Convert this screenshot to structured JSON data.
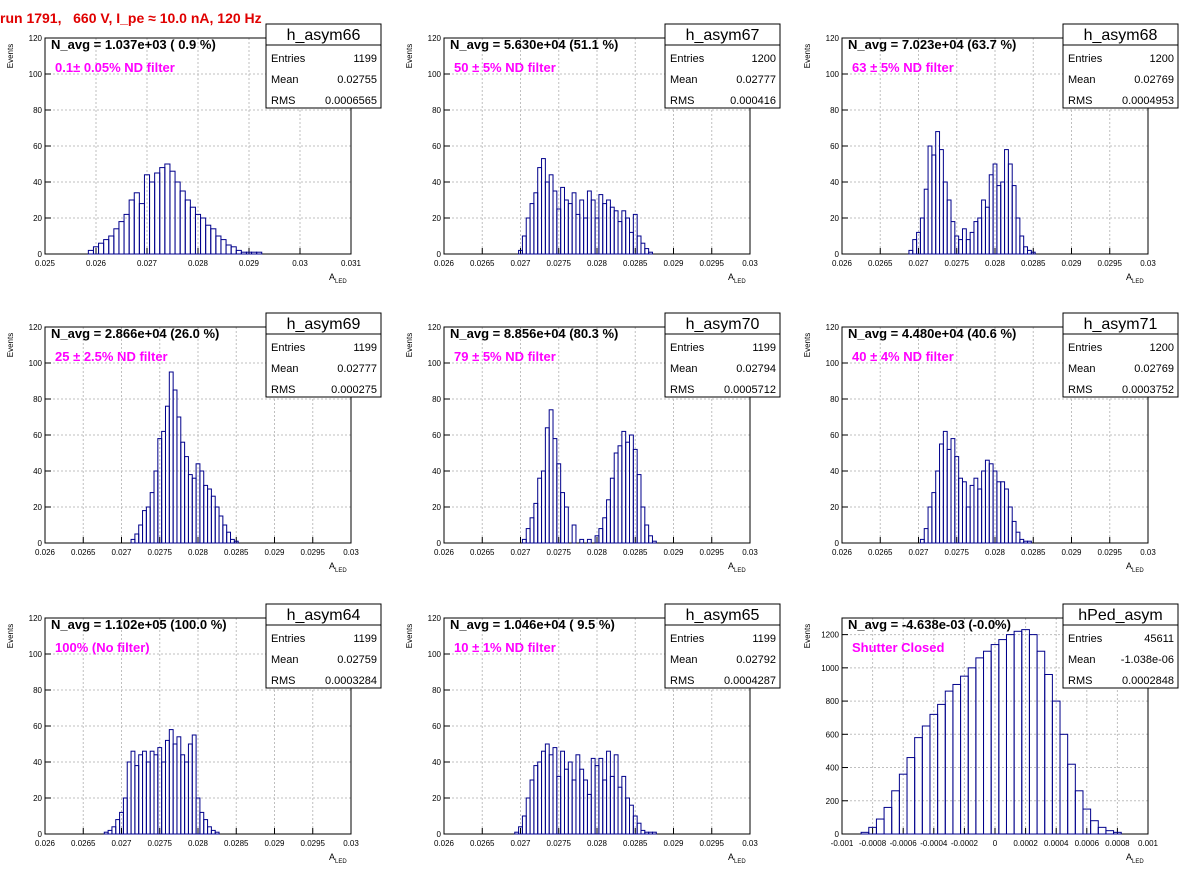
{
  "header": {
    "run_title": "run 1791,   660 V, I_pe ≈ 10.0 nA, 120 Hz"
  },
  "colors": {
    "histogram": "#00008b",
    "filter_text": "#ff00ff",
    "title_text": "#ff0000",
    "grid": "#bfbfbf"
  },
  "axis_labels": {
    "y": "Events",
    "x_main": "A",
    "x_sub": "LED"
  },
  "stat_labels": {
    "entries": "Entries",
    "mean": "Mean",
    "rms": "RMS"
  },
  "chart_data": [
    {
      "type": "bar",
      "name": "h_asym66",
      "navg": "N_avg = 1.037e+03 ( 0.9 %)",
      "filter": "0.1± 0.05% ND filter",
      "entries": "1199",
      "mean": "0.02755",
      "rms": "0.0006565",
      "xlim": [
        0.025,
        0.031
      ],
      "ylim": [
        0,
        120
      ],
      "xticks": [
        "0.025",
        "0.026",
        "0.027",
        "0.028",
        "0.029",
        "0.03",
        "0.031"
      ],
      "yticks": [
        "0",
        "20",
        "40",
        "60",
        "80",
        "100",
        "120"
      ],
      "x": [
        0.0259,
        0.026,
        0.0261,
        0.0262,
        0.0263,
        0.0264,
        0.0265,
        0.0266,
        0.0267,
        0.0268,
        0.0269,
        0.027,
        0.0271,
        0.0272,
        0.0273,
        0.0274,
        0.0275,
        0.0276,
        0.0277,
        0.0278,
        0.0279,
        0.028,
        0.0281,
        0.0282,
        0.0283,
        0.0284,
        0.0285,
        0.0286,
        0.0287,
        0.0288,
        0.0289,
        0.029,
        0.0291,
        0.0292
      ],
      "values": [
        2,
        4,
        6,
        8,
        10,
        14,
        18,
        22,
        30,
        34,
        28,
        44,
        40,
        45,
        48,
        50,
        46,
        40,
        35,
        30,
        26,
        22,
        20,
        16,
        14,
        10,
        8,
        5,
        4,
        2,
        1,
        1,
        1,
        1
      ]
    },
    {
      "type": "bar",
      "name": "h_asym67",
      "navg": "N_avg = 5.630e+04 (51.1 %)",
      "filter": "50 ± 5% ND filter",
      "entries": "1200",
      "mean": "0.02777",
      "rms": "0.000416",
      "xlim": [
        0.026,
        0.03
      ],
      "ylim": [
        0,
        120
      ],
      "xticks": [
        "0.026",
        "0.0265",
        "0.027",
        "0.0275",
        "0.028",
        "0.0285",
        "0.029",
        "0.0295",
        "0.03"
      ],
      "yticks": [
        "0",
        "20",
        "40",
        "60",
        "80",
        "100",
        "120"
      ],
      "x": [
        0.027,
        0.02705,
        0.0271,
        0.02715,
        0.0272,
        0.02725,
        0.0273,
        0.02735,
        0.0274,
        0.02745,
        0.0275,
        0.02755,
        0.0276,
        0.02765,
        0.0277,
        0.02775,
        0.0278,
        0.02785,
        0.0279,
        0.02795,
        0.028,
        0.02805,
        0.0281,
        0.02815,
        0.0282,
        0.02825,
        0.0283,
        0.02835,
        0.0284,
        0.02845,
        0.0285,
        0.02855,
        0.0286,
        0.02865,
        0.0287
      ],
      "values": [
        2,
        10,
        20,
        28,
        34,
        48,
        53,
        40,
        44,
        35,
        25,
        37,
        30,
        28,
        34,
        22,
        30,
        20,
        35,
        30,
        20,
        33,
        28,
        30,
        26,
        24,
        18,
        24,
        20,
        12,
        22,
        10,
        6,
        3,
        1
      ]
    },
    {
      "type": "bar",
      "name": "h_asym68",
      "navg": "N_avg = 7.023e+04 (63.7 %)",
      "filter": "63 ± 5% ND filter",
      "entries": "1200",
      "mean": "0.02769",
      "rms": "0.0004953",
      "xlim": [
        0.026,
        0.03
      ],
      "ylim": [
        0,
        120
      ],
      "xticks": [
        "0.026",
        "0.0265",
        "0.027",
        "0.0275",
        "0.028",
        "0.0285",
        "0.029",
        "0.0295",
        "0.03"
      ],
      "yticks": [
        "0",
        "20",
        "40",
        "60",
        "80",
        "100",
        "120"
      ],
      "x": [
        0.0269,
        0.02695,
        0.027,
        0.02705,
        0.0271,
        0.02715,
        0.0272,
        0.02725,
        0.0273,
        0.02735,
        0.0274,
        0.02745,
        0.0275,
        0.02755,
        0.0276,
        0.02765,
        0.0277,
        0.02775,
        0.0278,
        0.02785,
        0.0279,
        0.02795,
        0.028,
        0.02805,
        0.0281,
        0.02815,
        0.0282,
        0.02825,
        0.0283,
        0.02835,
        0.0284,
        0.02845,
        0.0285,
        0.02855,
        0.0286
      ],
      "values": [
        2,
        8,
        12,
        20,
        36,
        60,
        55,
        68,
        58,
        40,
        30,
        18,
        10,
        8,
        14,
        8,
        12,
        18,
        20,
        30,
        26,
        44,
        50,
        38,
        40,
        58,
        50,
        38,
        20,
        10,
        4,
        2,
        1,
        0,
        0
      ]
    },
    {
      "type": "bar",
      "name": "h_asym69",
      "navg": "N_avg = 2.866e+04 (26.0 %)",
      "filter": "25 ± 2.5% ND filter",
      "entries": "1199",
      "mean": "0.02777",
      "rms": "0.000275",
      "xlim": [
        0.026,
        0.03
      ],
      "ylim": [
        0,
        120
      ],
      "xticks": [
        "0.026",
        "0.0265",
        "0.027",
        "0.0275",
        "0.028",
        "0.0285",
        "0.029",
        "0.0295",
        "0.03"
      ],
      "yticks": [
        "0",
        "20",
        "40",
        "60",
        "80",
        "100",
        "120"
      ],
      "x": [
        0.02715,
        0.0272,
        0.02725,
        0.0273,
        0.02735,
        0.0274,
        0.02745,
        0.0275,
        0.02755,
        0.0276,
        0.02765,
        0.0277,
        0.02775,
        0.0278,
        0.02785,
        0.0279,
        0.02795,
        0.028,
        0.02805,
        0.0281,
        0.02815,
        0.0282,
        0.02825,
        0.0283,
        0.02835,
        0.0284,
        0.02845,
        0.0285
      ],
      "values": [
        2,
        5,
        10,
        18,
        20,
        28,
        40,
        58,
        62,
        76,
        95,
        85,
        70,
        56,
        48,
        38,
        36,
        44,
        40,
        32,
        30,
        26,
        20,
        15,
        10,
        6,
        2,
        1
      ]
    },
    {
      "type": "bar",
      "name": "h_asym70",
      "navg": "N_avg = 8.856e+04 (80.3 %)",
      "filter": "79 ± 5% ND filter",
      "entries": "1199",
      "mean": "0.02794",
      "rms": "0.0005712",
      "xlim": [
        0.026,
        0.03
      ],
      "ylim": [
        0,
        120
      ],
      "xticks": [
        "0.026",
        "0.0265",
        "0.027",
        "0.0275",
        "0.028",
        "0.0285",
        "0.029",
        "0.0295",
        "0.03"
      ],
      "yticks": [
        "0",
        "20",
        "40",
        "60",
        "80",
        "100",
        "120"
      ],
      "x": [
        0.02705,
        0.0271,
        0.02715,
        0.0272,
        0.02725,
        0.0273,
        0.02735,
        0.0274,
        0.02745,
        0.0275,
        0.02755,
        0.0276,
        0.0277,
        0.0278,
        0.0279,
        0.028,
        0.02805,
        0.0281,
        0.02815,
        0.0282,
        0.02825,
        0.0283,
        0.02835,
        0.0284,
        0.02845,
        0.0285,
        0.02855,
        0.0286,
        0.02865,
        0.0287,
        0.02875
      ],
      "values": [
        2,
        8,
        14,
        22,
        36,
        40,
        64,
        74,
        58,
        44,
        28,
        20,
        10,
        2,
        2,
        4,
        8,
        14,
        24,
        36,
        50,
        54,
        62,
        56,
        60,
        52,
        38,
        20,
        10,
        4,
        1
      ]
    },
    {
      "type": "bar",
      "name": "h_asym71",
      "navg": "N_avg = 4.480e+04 (40.6 %)",
      "filter": "40 ± 4% ND filter",
      "entries": "1200",
      "mean": "0.02769",
      "rms": "0.0003752",
      "xlim": [
        0.026,
        0.03
      ],
      "ylim": [
        0,
        120
      ],
      "xticks": [
        "0.026",
        "0.0265",
        "0.027",
        "0.0275",
        "0.028",
        "0.0285",
        "0.029",
        "0.0295",
        "0.03"
      ],
      "yticks": [
        "0",
        "20",
        "40",
        "60",
        "80",
        "100",
        "120"
      ],
      "x": [
        0.02705,
        0.0271,
        0.02715,
        0.0272,
        0.02725,
        0.0273,
        0.02735,
        0.0274,
        0.02745,
        0.0275,
        0.02755,
        0.0276,
        0.02765,
        0.0277,
        0.02775,
        0.0278,
        0.02785,
        0.0279,
        0.02795,
        0.028,
        0.02805,
        0.0281,
        0.02815,
        0.0282,
        0.02825,
        0.0283,
        0.02835,
        0.0284,
        0.02845
      ],
      "values": [
        2,
        8,
        20,
        28,
        40,
        55,
        62,
        52,
        58,
        48,
        36,
        34,
        20,
        32,
        36,
        30,
        40,
        46,
        44,
        40,
        34,
        34,
        30,
        20,
        12,
        6,
        2,
        1,
        1
      ]
    },
    {
      "type": "bar",
      "name": "h_asym64",
      "navg": "N_avg = 1.102e+05 (100.0 %)",
      "filter": "100% (No filter)",
      "entries": "1199",
      "mean": "0.02759",
      "rms": "0.0003284",
      "xlim": [
        0.026,
        0.03
      ],
      "ylim": [
        0,
        120
      ],
      "xticks": [
        "0.026",
        "0.0265",
        "0.027",
        "0.0275",
        "0.028",
        "0.0285",
        "0.029",
        "0.0295",
        "0.03"
      ],
      "yticks": [
        "0",
        "20",
        "40",
        "60",
        "80",
        "100",
        "120"
      ],
      "x": [
        0.0268,
        0.02685,
        0.0269,
        0.02695,
        0.027,
        0.02705,
        0.0271,
        0.02715,
        0.0272,
        0.02725,
        0.0273,
        0.02735,
        0.0274,
        0.02745,
        0.0275,
        0.02755,
        0.0276,
        0.02765,
        0.0277,
        0.02775,
        0.0278,
        0.02785,
        0.0279,
        0.02795,
        0.028,
        0.02805,
        0.0281,
        0.02815,
        0.0282,
        0.02825
      ],
      "values": [
        1,
        2,
        4,
        8,
        12,
        20,
        40,
        46,
        38,
        44,
        46,
        40,
        46,
        44,
        48,
        40,
        52,
        58,
        50,
        54,
        44,
        40,
        50,
        55,
        20,
        12,
        8,
        4,
        2,
        1
      ]
    },
    {
      "type": "bar",
      "name": "h_asym65",
      "navg": "N_avg = 1.046e+04 ( 9.5 %)",
      "filter": "10 ± 1% ND filter",
      "entries": "1199",
      "mean": "0.02792",
      "rms": "0.0004287",
      "xlim": [
        0.026,
        0.03
      ],
      "ylim": [
        0,
        120
      ],
      "xticks": [
        "0.026",
        "0.0265",
        "0.027",
        "0.0275",
        "0.028",
        "0.0285",
        "0.029",
        "0.0295",
        "0.03"
      ],
      "yticks": [
        "0",
        "20",
        "40",
        "60",
        "80",
        "100",
        "120"
      ],
      "x": [
        0.02695,
        0.027,
        0.02705,
        0.0271,
        0.02715,
        0.0272,
        0.02725,
        0.0273,
        0.02735,
        0.0274,
        0.02745,
        0.0275,
        0.02755,
        0.0276,
        0.02765,
        0.0277,
        0.02775,
        0.0278,
        0.02785,
        0.0279,
        0.02795,
        0.028,
        0.02805,
        0.0281,
        0.02815,
        0.0282,
        0.02825,
        0.0283,
        0.02835,
        0.0284,
        0.02845,
        0.0285,
        0.02855,
        0.0286,
        0.02865,
        0.0287,
        0.02875,
        0.0288
      ],
      "values": [
        1,
        4,
        10,
        20,
        30,
        38,
        40,
        46,
        50,
        44,
        48,
        32,
        46,
        36,
        40,
        30,
        44,
        36,
        30,
        22,
        42,
        38,
        42,
        30,
        46,
        32,
        44,
        26,
        32,
        20,
        16,
        10,
        6,
        2,
        1,
        1,
        1,
        0
      ]
    },
    {
      "type": "bar",
      "name": "hPed_asym",
      "navg": "N_avg = -4.638e-03 (-0.0%)",
      "filter": "Shutter Closed",
      "entries": "45611",
      "mean": "-1.038e-06",
      "rms": "0.0002848",
      "xlim": [
        -0.001,
        0.001
      ],
      "ylim": [
        0,
        1300
      ],
      "xticks": [
        "-0.001",
        "-0.0008",
        "-0.0006",
        "-0.0004",
        "-0.0002",
        "0",
        "0.0002",
        "0.0004",
        "0.0006",
        "0.0008",
        "0.001"
      ],
      "yticks": [
        "0",
        "200",
        "400",
        "600",
        "800",
        "1000",
        "1200"
      ],
      "x": [
        -0.00085,
        -0.0008,
        -0.00075,
        -0.0007,
        -0.00065,
        -0.0006,
        -0.00055,
        -0.0005,
        -0.00045,
        -0.0004,
        -0.00035,
        -0.0003,
        -0.00025,
        -0.0002,
        -0.00015,
        -0.0001,
        -5e-05,
        0,
        5e-05,
        0.0001,
        0.00015,
        0.0002,
        0.00025,
        0.0003,
        0.00035,
        0.0004,
        0.00045,
        0.0005,
        0.00055,
        0.0006,
        0.00065,
        0.0007,
        0.00075,
        0.0008
      ],
      "values": [
        10,
        40,
        90,
        160,
        260,
        360,
        460,
        580,
        650,
        720,
        780,
        860,
        900,
        950,
        1000,
        1060,
        1100,
        1140,
        1170,
        1200,
        1220,
        1230,
        1200,
        1100,
        960,
        800,
        600,
        420,
        260,
        150,
        80,
        40,
        20,
        10
      ]
    }
  ]
}
